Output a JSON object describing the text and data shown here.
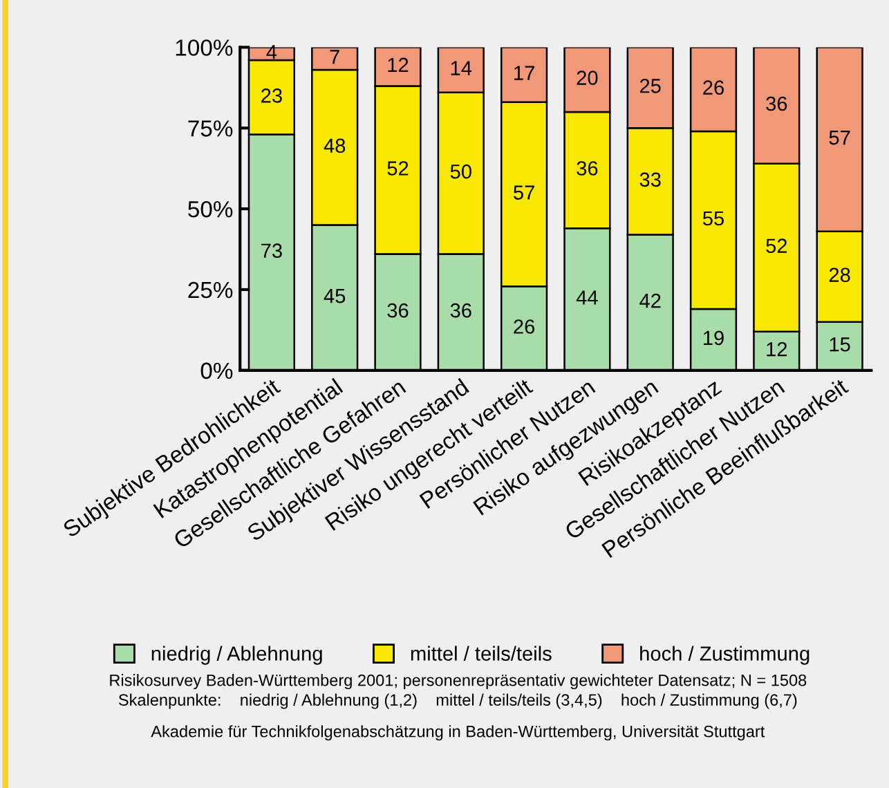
{
  "chart_data": {
    "type": "bar",
    "stacked": true,
    "data_labels": true,
    "categories": [
      "Subjektive Bedrohlichkeit",
      "Katastrophenpotential",
      "Gesellschaftliche Gefahren",
      "Subjektiver Wissensstand",
      "Risiko ungerecht verteilt",
      "Persönlicher Nutzen",
      "Risiko aufgezwungen",
      "Risikoakzeptanz",
      "Gesellschaftlicher Nutzen",
      "Persönliche Beeinflußbarkeit"
    ],
    "series": [
      {
        "name": "niedrig / Ablehnung",
        "color": "#a8dca8",
        "values": [
          73,
          45,
          36,
          36,
          26,
          44,
          42,
          19,
          12,
          15
        ]
      },
      {
        "name": "mittel / teils/teils",
        "color": "#f8e800",
        "values": [
          23,
          48,
          52,
          50,
          57,
          36,
          33,
          55,
          52,
          28
        ]
      },
      {
        "name": "hoch / Zustimmung",
        "color": "#f09878",
        "values": [
          4,
          7,
          12,
          14,
          17,
          20,
          25,
          26,
          36,
          57
        ]
      }
    ],
    "ylim": [
      0,
      100
    ],
    "yticks": [
      {
        "value": 0,
        "label": "0%"
      },
      {
        "value": 25,
        "label": "25%"
      },
      {
        "value": 50,
        "label": "50%"
      },
      {
        "value": 75,
        "label": "75%"
      },
      {
        "value": 100,
        "label": "100%"
      }
    ],
    "grid": false,
    "legend": "bottom",
    "annotations": [
      "Risikosurvey Baden-Württemberg 2001; personenrepräsentativ gewichteter Datensatz; N = 1508",
      "Skalenpunkte:    niedrig / Ablehnung (1,2)    mittel / teils/teils (3,4,5)    hoch / Zustimmung (6,7)",
      "Akademie für Technikfolgenabschätzung in Baden-Württemberg, Universität Stuttgart"
    ]
  }
}
